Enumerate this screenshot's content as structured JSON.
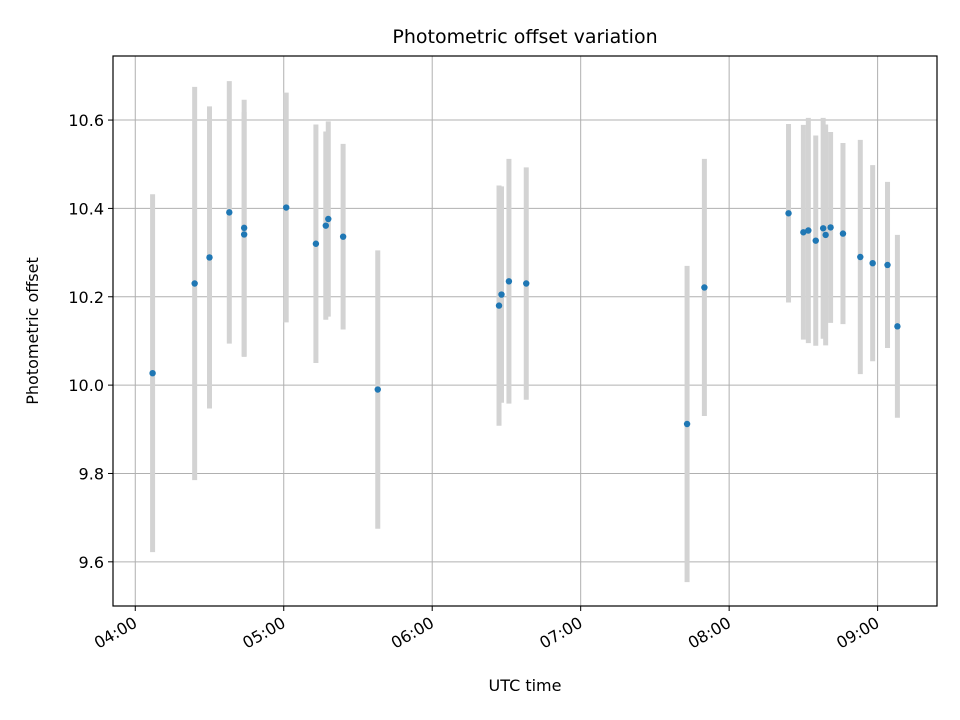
{
  "chart_data": {
    "type": "scatter",
    "title": "Photometric offset variation",
    "xlabel": "UTC time",
    "ylabel": "Photometric offset",
    "x_axis_type": "time",
    "xlim": [
      "03:51",
      "09:24"
    ],
    "ylim": [
      9.5,
      10.745
    ],
    "grid": true,
    "x_tick_labels": [
      "04:00",
      "05:00",
      "06:00",
      "07:00",
      "08:00",
      "09:00"
    ],
    "y_ticks": [
      9.6,
      9.8,
      10.0,
      10.2,
      10.4,
      10.6
    ],
    "y_tick_labels": [
      "9.6",
      "9.8",
      "10.0",
      "10.2",
      "10.4",
      "10.6"
    ],
    "point_color": "#1f77b4",
    "errorbar_color": "#d3d3d3",
    "series": [
      {
        "points": [
          {
            "x": "04:07",
            "y": 10.027,
            "yerr": 0.405
          },
          {
            "x": "04:24",
            "y": 10.23,
            "yerr": 0.445
          },
          {
            "x": "04:30",
            "y": 10.289,
            "yerr": 0.342
          },
          {
            "x": "04:38",
            "y": 10.391,
            "yerr": 0.297
          },
          {
            "x": "04:44",
            "y": 10.341,
            "yerr": 0.277
          },
          {
            "x": "04:44",
            "y": 10.356,
            "yerr": 0.29
          },
          {
            "x": "05:01",
            "y": 10.402,
            "yerr": 0.26
          },
          {
            "x": "05:13",
            "y": 10.32,
            "yerr": 0.27
          },
          {
            "x": "05:17",
            "y": 10.361,
            "yerr": 0.213
          },
          {
            "x": "05:18",
            "y": 10.376,
            "yerr": 0.221
          },
          {
            "x": "05:24",
            "y": 10.336,
            "yerr": 0.21
          },
          {
            "x": "05:38",
            "y": 9.99,
            "yerr": 0.315
          },
          {
            "x": "06:27",
            "y": 10.18,
            "yerr": 0.272
          },
          {
            "x": "06:28",
            "y": 10.205,
            "yerr": 0.245
          },
          {
            "x": "06:31",
            "y": 10.235,
            "yerr": 0.277
          },
          {
            "x": "06:38",
            "y": 10.23,
            "yerr": 0.263
          },
          {
            "x": "07:43",
            "y": 9.912,
            "yerr": 0.358
          },
          {
            "x": "07:50",
            "y": 10.221,
            "yerr": 0.291
          },
          {
            "x": "08:24",
            "y": 10.389,
            "yerr": 0.202
          },
          {
            "x": "08:30",
            "y": 10.346,
            "yerr": 0.243
          },
          {
            "x": "08:32",
            "y": 10.35,
            "yerr": 0.255
          },
          {
            "x": "08:35",
            "y": 10.327,
            "yerr": 0.238
          },
          {
            "x": "08:38",
            "y": 10.355,
            "yerr": 0.25
          },
          {
            "x": "08:39",
            "y": 10.34,
            "yerr": 0.25
          },
          {
            "x": "08:41",
            "y": 10.357,
            "yerr": 0.216
          },
          {
            "x": "08:46",
            "y": 10.343,
            "yerr": 0.205
          },
          {
            "x": "08:53",
            "y": 10.29,
            "yerr": 0.265
          },
          {
            "x": "08:58",
            "y": 10.276,
            "yerr": 0.222
          },
          {
            "x": "09:04",
            "y": 10.272,
            "yerr": 0.188
          },
          {
            "x": "09:08",
            "y": 10.133,
            "yerr": 0.207
          }
        ]
      }
    ]
  }
}
